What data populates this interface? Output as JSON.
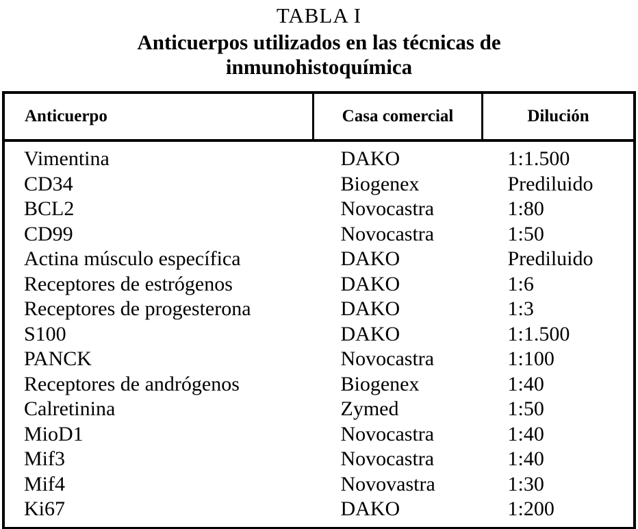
{
  "title": {
    "label": "TABLA I",
    "caption_line1": "Anticuerpos utilizados en las técnicas de",
    "caption_line2": "inmunohistoquímica"
  },
  "table": {
    "headers": {
      "anticuerpo": "Anticuerpo",
      "casa": "Casa comercial",
      "dilucion": "Dilución"
    },
    "rows": [
      {
        "anticuerpo": "Vimentina",
        "casa": "DAKO",
        "dilucion": "1:1.500"
      },
      {
        "anticuerpo": "CD34",
        "casa": "Biogenex",
        "dilucion": "Prediluido"
      },
      {
        "anticuerpo": "BCL2",
        "casa": "Novocastra",
        "dilucion": "1:80"
      },
      {
        "anticuerpo": "CD99",
        "casa": "Novocastra",
        "dilucion": "1:50"
      },
      {
        "anticuerpo": "Actina músculo específica",
        "casa": "DAKO",
        "dilucion": "Prediluido"
      },
      {
        "anticuerpo": "Receptores de estrógenos",
        "casa": "DAKO",
        "dilucion": "1:6"
      },
      {
        "anticuerpo": "Receptores de progesterona",
        "casa": "DAKO",
        "dilucion": "1:3"
      },
      {
        "anticuerpo": "S100",
        "casa": "DAKO",
        "dilucion": "1:1.500"
      },
      {
        "anticuerpo": "PANCK",
        "casa": "Novocastra",
        "dilucion": "1:100"
      },
      {
        "anticuerpo": "Receptores de andrógenos",
        "casa": "Biogenex",
        "dilucion": "1:40"
      },
      {
        "anticuerpo": "Calretinina",
        "casa": "Zymed",
        "dilucion": "1:50"
      },
      {
        "anticuerpo": "MioD1",
        "casa": "Novocastra",
        "dilucion": "1:40"
      },
      {
        "anticuerpo": "Mif3",
        "casa": "Novocastra",
        "dilucion": "1:40"
      },
      {
        "anticuerpo": "Mif4",
        "casa": "Novovastra",
        "dilucion": "1:30"
      },
      {
        "anticuerpo": "Ki67",
        "casa": "DAKO",
        "dilucion": "1:200"
      }
    ],
    "colors": {
      "text": "#000000",
      "background": "#ffffff",
      "border": "#000000"
    }
  }
}
